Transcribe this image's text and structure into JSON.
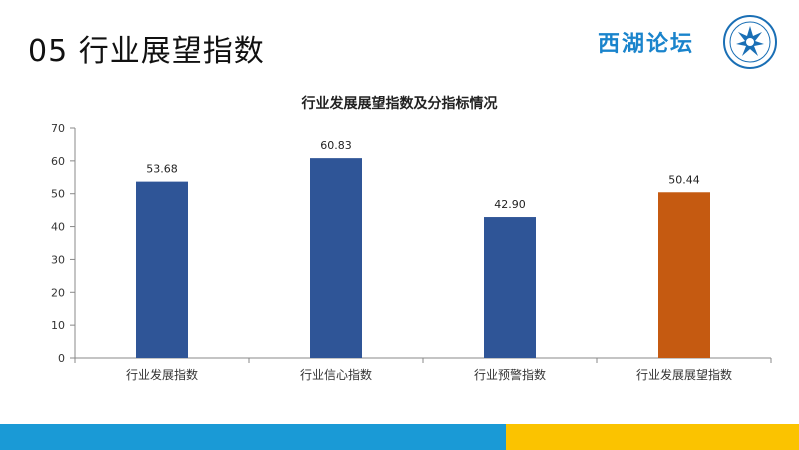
{
  "slide": {
    "title": "05 行业展望指数",
    "brand": "西湖论坛"
  },
  "colors": {
    "primary_bar": "#2f5597",
    "highlight_bar": "#c55a11",
    "footer_left": "#1a9ad6",
    "footer_right": "#fbc300"
  },
  "chart_data": {
    "type": "bar",
    "title": "行业发展展望指数及分指标情况",
    "categories": [
      "行业发展指数",
      "行业信心指数",
      "行业预警指数",
      "行业发展展望指数"
    ],
    "values": [
      53.68,
      60.83,
      42.9,
      50.44
    ],
    "value_labels": [
      "53.68",
      "60.83",
      "42.90",
      "50.44"
    ],
    "bar_colors": [
      "#2f5597",
      "#2f5597",
      "#2f5597",
      "#c55a11"
    ],
    "ylim": [
      0,
      70
    ],
    "yticks": [
      0,
      10,
      20,
      30,
      40,
      50,
      60,
      70
    ],
    "grid": false,
    "legend": "none"
  }
}
